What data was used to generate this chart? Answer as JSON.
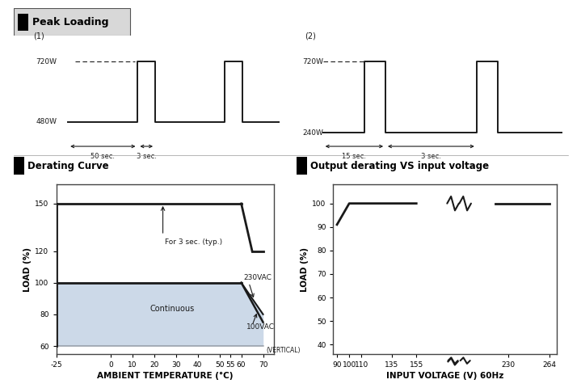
{
  "title": "Peak Loading",
  "bg_color": "#ffffff",
  "panel1_label": "(1)",
  "panel1_high_label": "720W",
  "panel1_low_label": "480W",
  "panel1_time1": "50 sec.",
  "panel1_time2": "3 sec.",
  "panel2_label": "(2)",
  "panel2_high_label": "720W",
  "panel2_low_label": "240W",
  "panel2_time1": "15 sec.",
  "panel2_time2": "3 sec.",
  "derating_title": "Derating Curve",
  "derating_xlabel": "AMBIENT TEMPERATURE (°C)",
  "derating_ylabel": "LOAD (%)",
  "derating_extra_xlabel": "(VERTICAL)",
  "derating_continuous_label": "Continuous",
  "derating_peak_label": "For 3 sec. (typ.)",
  "derating_230vac_label": "230VAC",
  "derating_100vac_label": "100VAC",
  "derating_fill_color": "#ccd9e8",
  "output_title": "Output derating VS input voltage",
  "output_xlabel": "INPUT VOLTAGE (V) 60Hz",
  "output_ylabel": "LOAD (%)",
  "line_color": "#1a1a1a"
}
